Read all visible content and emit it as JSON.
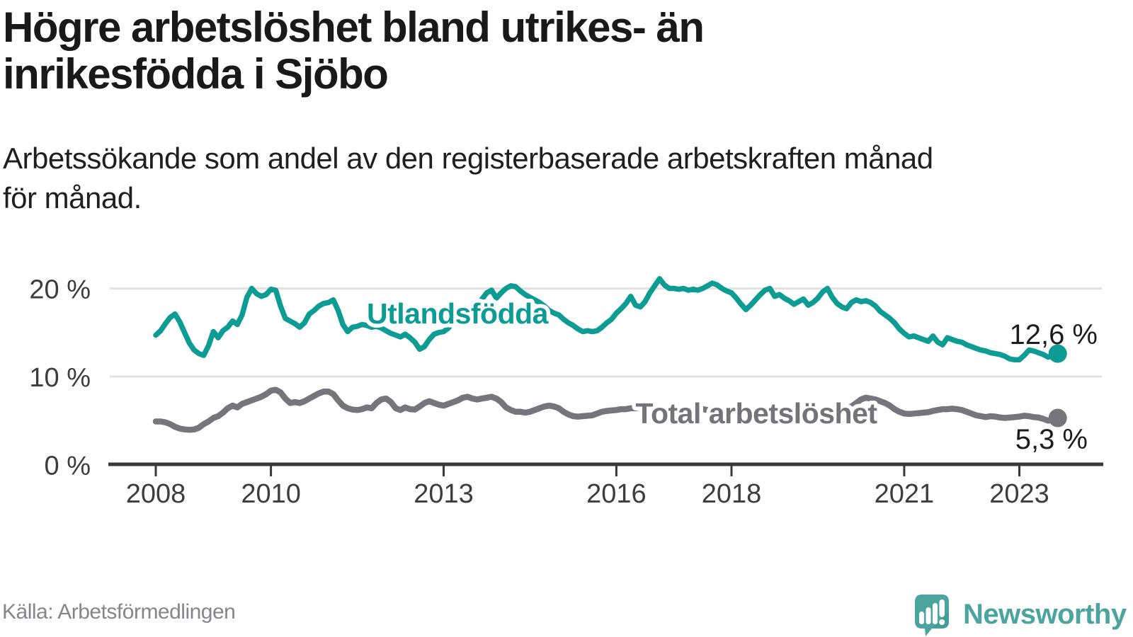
{
  "header": {
    "title_line1": "Högre arbetslöshet bland utrikes- än",
    "title_line2": "inrikesfödda i Sjöbo",
    "subtitle_line1": "Arbetssökande som andel av den registerbaserade arbetskraften månad",
    "subtitle_line2": "för månad."
  },
  "footer": {
    "source": "Källa: Arbetsförmedlingen",
    "brand": "Newsworthy"
  },
  "colors": {
    "accent_teal": "#0d9c94",
    "series_gray": "#76757b",
    "axis": "#383838",
    "gridline": "#e2e2e2",
    "title_text": "#191919",
    "logo_teal": "#4ba59e"
  },
  "chart_data": {
    "type": "line",
    "unit": "%",
    "gridlines": true,
    "legend": "inline-labels",
    "x_axis": {
      "min": 2008,
      "max": 2023.667,
      "tick_values": [
        2008,
        2010,
        2013,
        2016,
        2018,
        2021,
        2023
      ],
      "tick_labels": [
        "2008",
        "2010",
        "2013",
        "2016",
        "2018",
        "2021",
        "2023"
      ]
    },
    "y_axis": {
      "range": [
        0,
        22
      ],
      "tick_values": [
        0,
        10,
        20
      ],
      "tick_labels": [
        "0 %",
        "10 %",
        "20 %"
      ]
    },
    "series": [
      {
        "name": "Utlandsfödda",
        "color": "#0d9c94",
        "end_label": "12,6 %",
        "end_value": 12.6,
        "start_year": 2008,
        "points_per_year": 12,
        "values": [
          14.7,
          15.2,
          16.0,
          16.7,
          17.1,
          16.2,
          15.0,
          13.8,
          13.0,
          12.6,
          12.4,
          13.5,
          15.1,
          14.4,
          15.2,
          15.6,
          16.3,
          15.9,
          17.0,
          19.0,
          20.0,
          19.4,
          19.1,
          19.3,
          19.9,
          19.8,
          18.0,
          16.6,
          16.3,
          16.0,
          15.6,
          16.1,
          17.1,
          17.5,
          18.0,
          18.3,
          18.4,
          18.7,
          17.5,
          15.9,
          15.1,
          15.6,
          15.7,
          15.9,
          15.8,
          15.6,
          15.7,
          15.5,
          15.2,
          14.9,
          14.7,
          14.5,
          14.8,
          14.4,
          13.9,
          13.1,
          13.4,
          14.2,
          14.8,
          15.0,
          15.1,
          15.5,
          16.3,
          16.1,
          16.8,
          17.2,
          17.5,
          18.0,
          18.8,
          19.5,
          19.8,
          18.9,
          19.5,
          20.0,
          20.3,
          20.2,
          19.7,
          19.3,
          19.0,
          18.7,
          18.4,
          18.0,
          17.5,
          17.2,
          17.0,
          16.5,
          16.1,
          15.8,
          15.4,
          15.1,
          15.2,
          15.1,
          15.2,
          15.6,
          16.1,
          16.5,
          17.2,
          17.7,
          18.3,
          19.1,
          18.1,
          17.9,
          18.5,
          19.5,
          20.3,
          21.1,
          20.4,
          20.0,
          20.0,
          19.9,
          20.0,
          19.8,
          19.9,
          19.8,
          20.0,
          20.3,
          20.6,
          20.4,
          20.0,
          19.7,
          19.5,
          18.9,
          18.2,
          17.6,
          18.1,
          18.7,
          19.3,
          19.8,
          20.0,
          19.1,
          19.3,
          18.9,
          18.6,
          18.2,
          18.5,
          18.8,
          18.1,
          18.4,
          18.9,
          19.6,
          20.0,
          19.0,
          18.3,
          17.9,
          17.7,
          18.4,
          18.7,
          18.5,
          18.6,
          18.4,
          18.0,
          17.4,
          17.0,
          16.6,
          16.1,
          15.4,
          14.9,
          14.5,
          14.6,
          14.4,
          14.2,
          14.0,
          14.6,
          13.9,
          13.6,
          14.4,
          14.2,
          14.0,
          13.9,
          13.6,
          13.4,
          13.2,
          13.0,
          12.9,
          12.7,
          12.6,
          12.5,
          12.3,
          12.0,
          11.9,
          11.9,
          12.4,
          13.0,
          12.9,
          12.7,
          12.5,
          12.2,
          12.4,
          12.6
        ]
      },
      {
        "name": "Total arbetslöshet",
        "color": "#76757b",
        "end_label": "5,3 %",
        "end_value": 5.3,
        "start_year": 2008,
        "points_per_year": 12,
        "values": [
          4.9,
          4.9,
          4.8,
          4.6,
          4.3,
          4.1,
          4.0,
          3.95,
          4.0,
          4.2,
          4.6,
          4.9,
          5.3,
          5.5,
          5.9,
          6.4,
          6.7,
          6.5,
          6.9,
          7.1,
          7.3,
          7.5,
          7.7,
          8.0,
          8.4,
          8.5,
          8.2,
          7.5,
          7.0,
          7.1,
          7.0,
          7.2,
          7.5,
          7.8,
          8.1,
          8.3,
          8.3,
          8.0,
          7.3,
          6.7,
          6.4,
          6.25,
          6.2,
          6.3,
          6.5,
          6.4,
          7.0,
          7.4,
          7.5,
          7.1,
          6.4,
          6.2,
          6.5,
          6.3,
          6.25,
          6.6,
          7.0,
          7.2,
          7.0,
          6.8,
          6.7,
          6.9,
          7.1,
          7.3,
          7.6,
          7.7,
          7.5,
          7.4,
          7.5,
          7.6,
          7.7,
          7.5,
          7.1,
          6.5,
          6.2,
          6.0,
          6.0,
          5.9,
          6.0,
          6.2,
          6.4,
          6.6,
          6.7,
          6.6,
          6.4,
          6.0,
          5.7,
          5.5,
          5.45,
          5.5,
          5.55,
          5.6,
          5.8,
          6.0,
          6.1,
          6.15,
          6.2,
          6.3,
          6.3,
          6.4,
          6.4,
          6.5,
          6.5,
          6.4,
          6.4,
          6.3,
          6.3,
          6.4,
          6.4,
          6.3,
          6.3,
          6.2,
          6.2,
          6.3,
          6.3,
          6.2,
          6.1,
          6.1,
          6.0,
          6.0,
          6.0,
          5.9,
          5.9,
          5.8,
          5.8,
          5.9,
          5.9,
          5.9,
          6.0,
          5.9,
          5.9,
          6.0,
          6.0,
          6.1,
          6.1,
          6.0,
          6.1,
          6.2,
          6.3,
          6.2,
          6.2,
          6.2,
          6.3,
          6.3,
          6.4,
          6.6,
          7.0,
          7.4,
          7.6,
          7.5,
          7.4,
          7.2,
          7.0,
          6.7,
          6.3,
          6.0,
          5.8,
          5.75,
          5.8,
          5.85,
          5.9,
          5.95,
          6.1,
          6.2,
          6.3,
          6.3,
          6.35,
          6.3,
          6.2,
          6.0,
          5.8,
          5.6,
          5.5,
          5.4,
          5.5,
          5.45,
          5.35,
          5.3,
          5.35,
          5.4,
          5.45,
          5.55,
          5.5,
          5.4,
          5.35,
          5.2,
          5.0,
          5.1,
          5.3
        ]
      }
    ]
  }
}
